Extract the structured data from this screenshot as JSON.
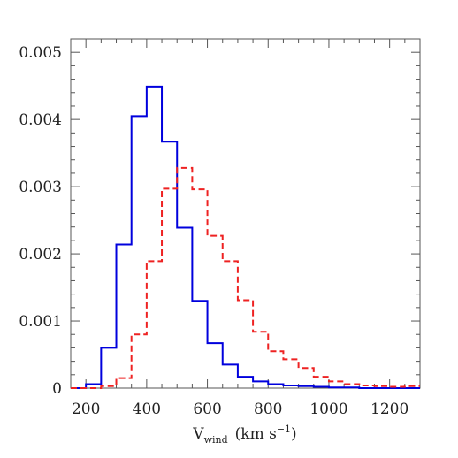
{
  "chart_data": {
    "type": "histogram",
    "xlabel": "V",
    "xlabel_sub": "wind",
    "xlabel_units": "(km s",
    "xlabel_sup": "−1",
    "xlabel_close": ")",
    "xlim": [
      150,
      1300
    ],
    "ylim": [
      0,
      0.0052
    ],
    "xticks": [
      200,
      400,
      600,
      800,
      1000,
      1200
    ],
    "xtick_labels": [
      "200",
      "400",
      "600",
      "800",
      "1000",
      "1200"
    ],
    "yticks": [
      0,
      0.001,
      0.002,
      0.003,
      0.004,
      0.005
    ],
    "ytick_labels": [
      "0",
      "0.001",
      "0.002",
      "0.003",
      "0.004",
      "0.005"
    ],
    "bin_edges": [
      150,
      200,
      250,
      300,
      350,
      400,
      450,
      500,
      550,
      600,
      650,
      700,
      750,
      800,
      850,
      900,
      950,
      1000,
      1050,
      1100,
      1150,
      1200,
      1250,
      1300
    ],
    "series": [
      {
        "color": "#0000dd",
        "style": "solid",
        "values": [
          0.0,
          6e-05,
          0.0006,
          0.00214,
          0.00405,
          0.00449,
          0.00367,
          0.00239,
          0.0013,
          0.00067,
          0.00035,
          0.00017,
          0.0001,
          6e-05,
          4e-05,
          3e-05,
          2e-05,
          1e-05,
          1e-05,
          0.0,
          0.0,
          0.0,
          0.0
        ]
      },
      {
        "color": "#ee2222",
        "style": "dashed",
        "values": [
          0.0,
          0.0,
          3e-05,
          0.00015,
          0.0008,
          0.00189,
          0.00297,
          0.00328,
          0.00296,
          0.00227,
          0.00189,
          0.00131,
          0.00084,
          0.00055,
          0.00043,
          0.0003,
          0.00017,
          0.0001,
          6e-05,
          4e-05,
          3e-05,
          2e-05,
          3e-05
        ]
      }
    ],
    "grid": false
  }
}
